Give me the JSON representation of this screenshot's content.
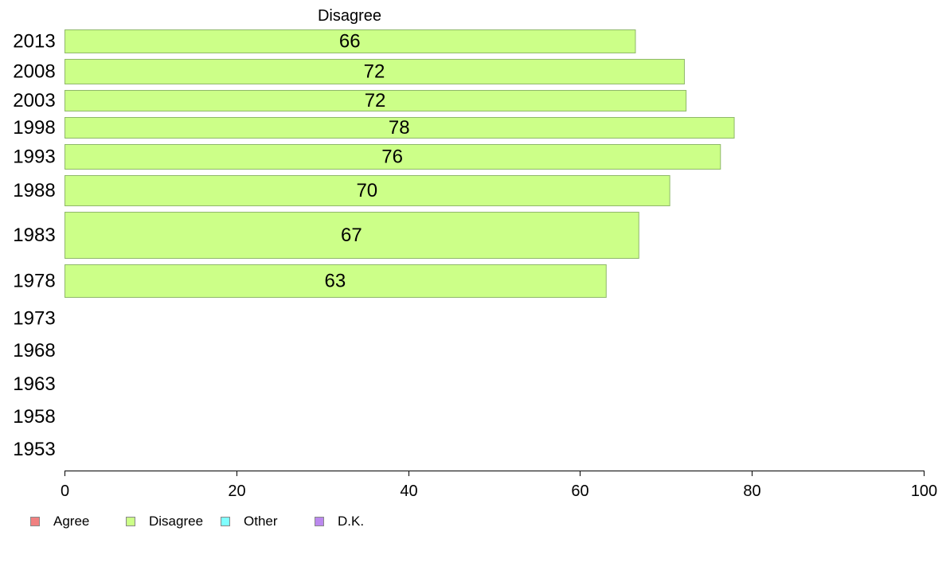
{
  "chart_data": {
    "type": "bar",
    "orientation": "horizontal",
    "title": "Disagree",
    "xlabel": "",
    "ylabel": "",
    "xlim": [
      0,
      100
    ],
    "x_ticks": [
      "0",
      "20",
      "40",
      "60",
      "80",
      "100"
    ],
    "categories": [
      "2013",
      "2008",
      "2003",
      "1998",
      "1993",
      "1988",
      "1983",
      "1978",
      "1973",
      "1968",
      "1963",
      "1958",
      "1953"
    ],
    "series": [
      {
        "name": "Disagree",
        "color": "#ccff88",
        "values": [
          66.4,
          72.1,
          72.3,
          77.9,
          76.3,
          70.4,
          66.8,
          63.0,
          null,
          null,
          null,
          null,
          null
        ],
        "labels": [
          "66",
          "72",
          "72",
          "78",
          "76",
          "70",
          "67",
          "63",
          "",
          "",
          "",
          "",
          ""
        ]
      }
    ],
    "grid": false,
    "legend_position": "bottom-left",
    "legend": [
      {
        "label": "Agree",
        "color": "#f08080"
      },
      {
        "label": "Disagree",
        "color": "#ccff88"
      },
      {
        "label": "Other",
        "color": "#80ffff"
      },
      {
        "label": "D.K.",
        "color": "#bb88ee"
      }
    ]
  }
}
